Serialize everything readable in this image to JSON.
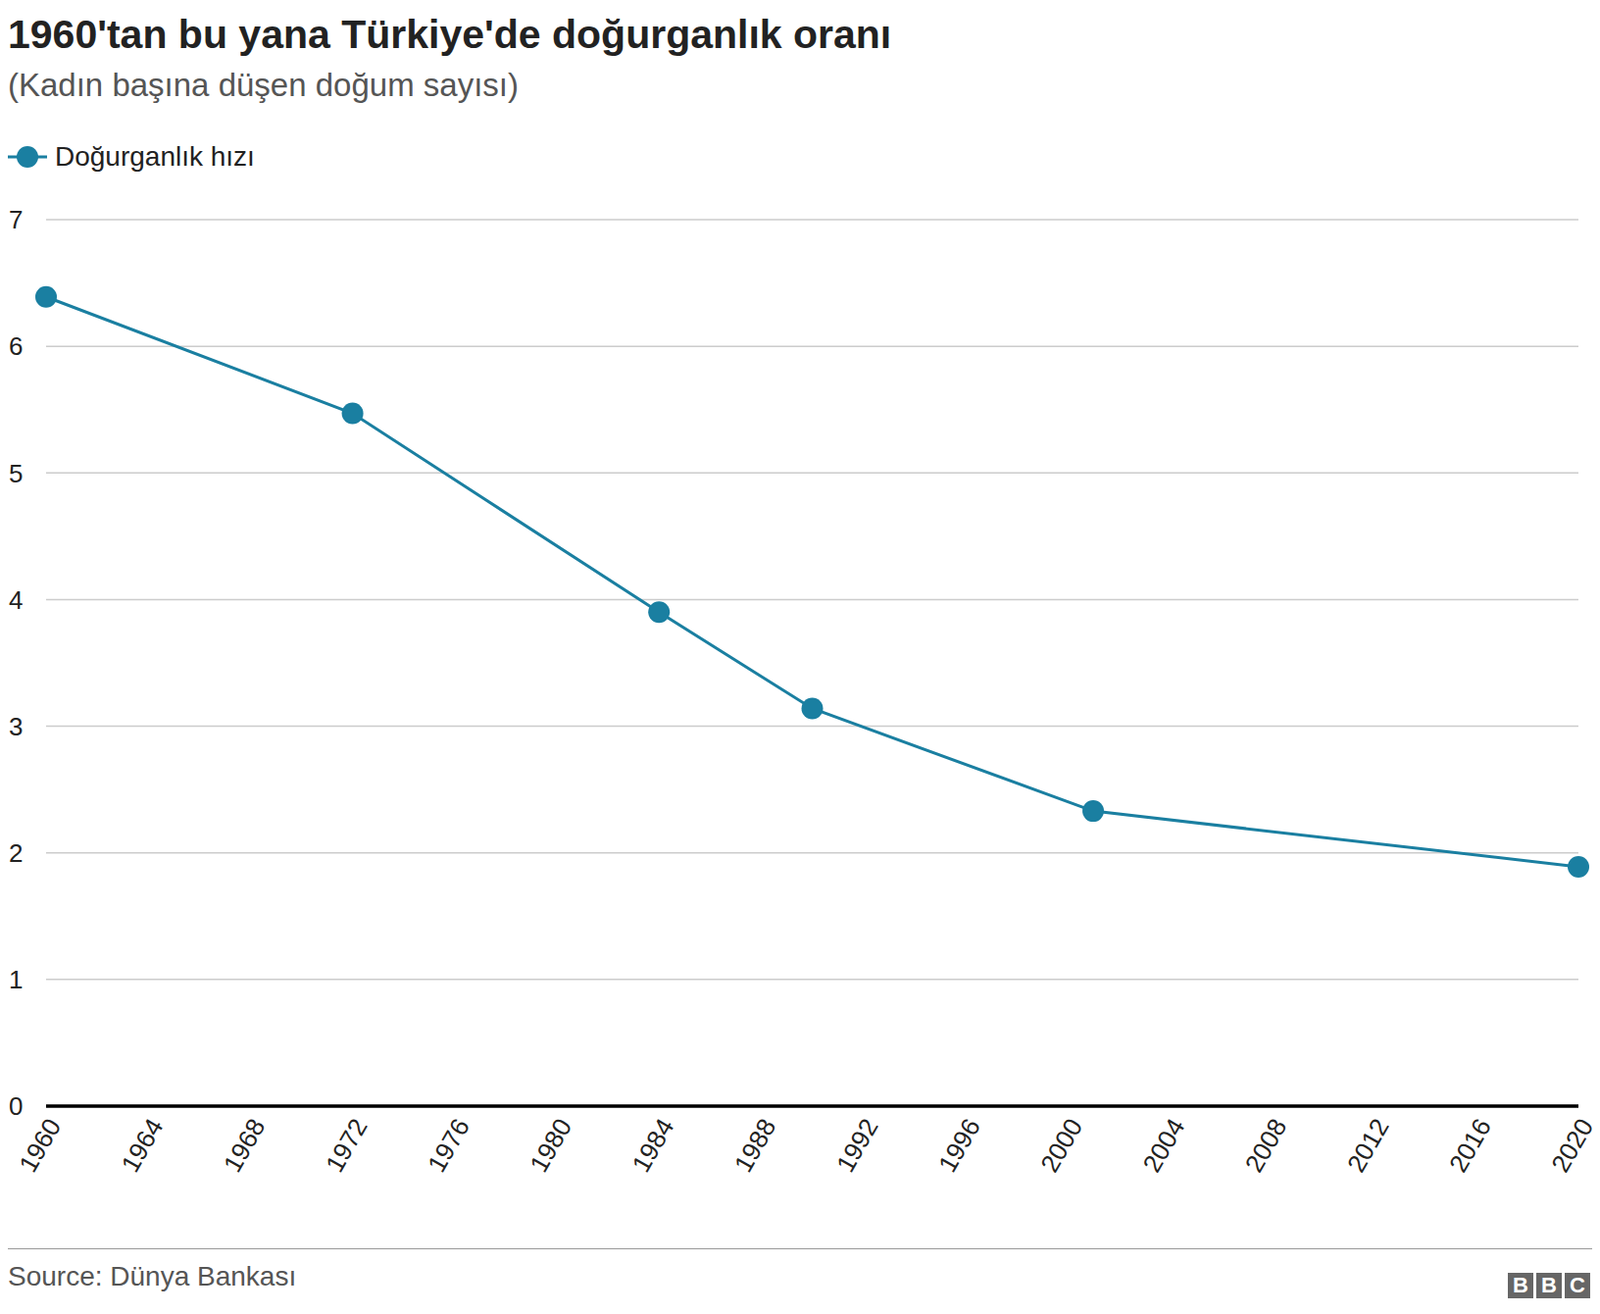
{
  "chart_data": {
    "type": "line",
    "title": "1960'tan bu yana Türkiye'de doğurganlık oranı",
    "subtitle": "(Kadın başına düşen doğum sayısı)",
    "x": [
      1960,
      1972,
      1984,
      1990,
      2001,
      2020
    ],
    "series": [
      {
        "name": "Doğurganlık hızı",
        "color": "#1a7fa1",
        "values": [
          6.39,
          5.47,
          3.9,
          3.14,
          2.33,
          1.89
        ],
        "marker": "circle"
      }
    ],
    "xlim": [
      1960,
      2020
    ],
    "xticks": [
      1960,
      1964,
      1968,
      1972,
      1976,
      1980,
      1984,
      1988,
      1992,
      1996,
      2000,
      2004,
      2008,
      2012,
      2016,
      2020
    ],
    "ylim": [
      0,
      7
    ],
    "yticks": [
      0,
      1,
      2,
      3,
      4,
      5,
      6,
      7
    ],
    "grid": true,
    "legend": "top-left",
    "source": "Source: Dünya Bankası",
    "logo": "BBC"
  }
}
